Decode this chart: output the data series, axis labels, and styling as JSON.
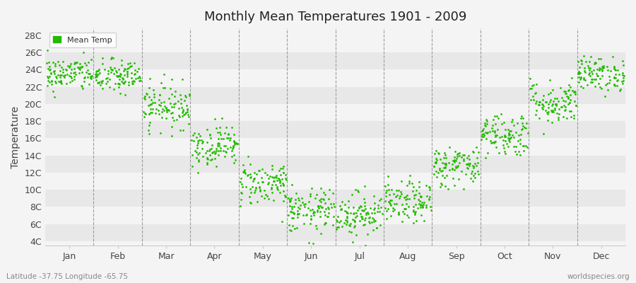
{
  "title": "Monthly Mean Temperatures 1901 - 2009",
  "ylabel": "Temperature",
  "yticks": [
    4,
    6,
    8,
    10,
    12,
    14,
    16,
    18,
    20,
    22,
    24,
    26,
    28
  ],
  "ytick_labels": [
    "4C",
    "6C",
    "8C",
    "10C",
    "12C",
    "14C",
    "16C",
    "18C",
    "20C",
    "22C",
    "24C",
    "26C",
    "28C"
  ],
  "ylim": [
    3.5,
    28.8
  ],
  "months": [
    "Jan",
    "Feb",
    "Mar",
    "Apr",
    "May",
    "Jun",
    "Jul",
    "Aug",
    "Sep",
    "Oct",
    "Nov",
    "Dec"
  ],
  "dot_color": "#22bb00",
  "dot_size": 4,
  "background_color": "#f4f4f4",
  "band_colors_even": "#e8e8e8",
  "band_colors_odd": "#f4f4f4",
  "legend_label": "Mean Temp",
  "footer_left": "Latitude -37.75 Longitude -65.75",
  "footer_right": "worldspecies.org",
  "seed": 42,
  "n_years": 109,
  "monthly_means": [
    23.5,
    23.2,
    19.8,
    15.2,
    10.8,
    7.5,
    7.2,
    8.5,
    12.8,
    16.5,
    20.2,
    23.5
  ],
  "monthly_stds": [
    1.0,
    1.0,
    1.3,
    1.2,
    1.3,
    1.3,
    1.3,
    1.2,
    1.2,
    1.3,
    1.3,
    1.0
  ]
}
